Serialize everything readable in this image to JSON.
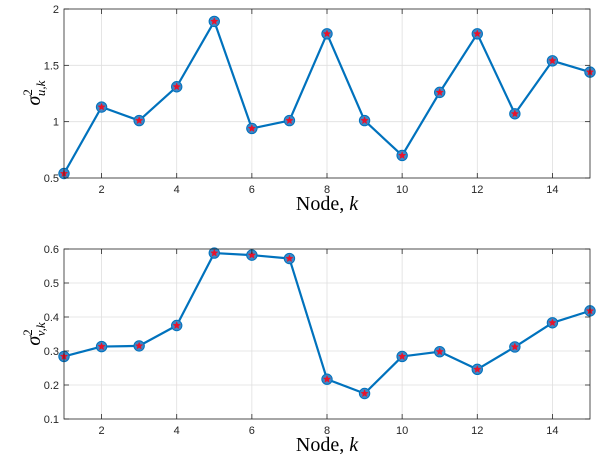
{
  "chart_data": [
    {
      "type": "line",
      "xlabel_text": "Node, ",
      "xlabel_var": "k",
      "ylabel": {
        "symbol": "σ",
        "sup": "2",
        "sub": "u,k"
      },
      "xlim": [
        1,
        15
      ],
      "ylim": [
        0.5,
        2
      ],
      "xticks": [
        2,
        4,
        6,
        8,
        10,
        12,
        14
      ],
      "xtick_labels": [
        "2",
        "4",
        "6",
        "8",
        "10",
        "12",
        "14"
      ],
      "yticks": [
        0.5,
        1,
        1.5,
        2
      ],
      "ytick_labels": [
        "0.5",
        "1",
        "1.5",
        "2"
      ],
      "grid": true,
      "x": [
        1,
        2,
        3,
        4,
        5,
        6,
        7,
        8,
        9,
        10,
        11,
        12,
        13,
        14,
        15
      ],
      "series": [
        {
          "values": [
            0.54,
            1.13,
            1.01,
            1.31,
            1.89,
            0.94,
            1.01,
            1.78,
            1.01,
            0.7,
            1.26,
            1.78,
            1.07,
            1.54,
            1.44
          ]
        }
      ]
    },
    {
      "type": "line",
      "xlabel_text": "Node, ",
      "xlabel_var": "k",
      "ylabel": {
        "symbol": "σ",
        "sup": "2",
        "sub": "v,k"
      },
      "xlim": [
        1,
        15
      ],
      "ylim": [
        0.1,
        0.6
      ],
      "xticks": [
        2,
        4,
        6,
        8,
        10,
        12,
        14
      ],
      "xtick_labels": [
        "2",
        "4",
        "6",
        "8",
        "10",
        "12",
        "14"
      ],
      "yticks": [
        0.1,
        0.2,
        0.3,
        0.4,
        0.5,
        0.6
      ],
      "ytick_labels": [
        "0.1",
        "0.2",
        "0.3",
        "0.4",
        "0.5",
        "0.6"
      ],
      "grid": true,
      "x": [
        1,
        2,
        3,
        4,
        5,
        6,
        7,
        8,
        9,
        10,
        11,
        12,
        13,
        14,
        15
      ],
      "series": [
        {
          "values": [
            0.284,
            0.313,
            0.315,
            0.375,
            0.588,
            0.582,
            0.572,
            0.217,
            0.175,
            0.284,
            0.298,
            0.246,
            0.312,
            0.383,
            0.418
          ]
        }
      ]
    }
  ],
  "colors": {
    "line": "#0072BD",
    "marker_fill": "#3D87C6",
    "marker_star": "#E8132B",
    "axes": "#262626",
    "grid": "#DFDFDF"
  }
}
